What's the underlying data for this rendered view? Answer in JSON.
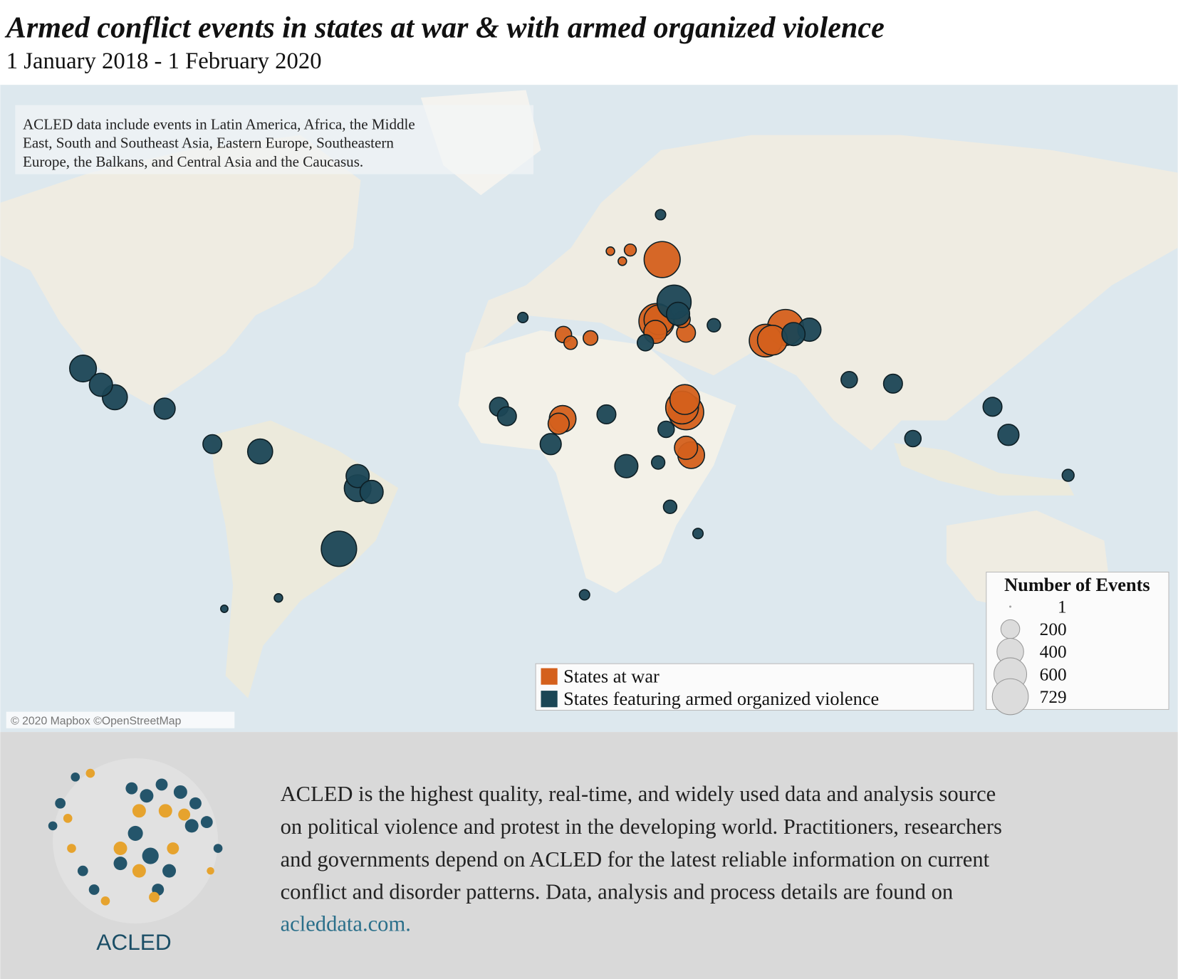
{
  "title": "Armed conflict events in states at war & with armed organized violence",
  "subtitle": "1 January 2018 - 1 February 2020",
  "map_note": [
    "ACLED data include events in Latin America, Africa, the Middle",
    "East, South and Southeast Asia, Eastern Europe, Southeastern",
    "Europe, the Balkans, and Central Asia and the Caucasus."
  ],
  "attribution": "© 2020 Mapbox ©OpenStreetMap",
  "chart_data": {
    "type": "bubble-map",
    "series": [
      {
        "name": "States at war",
        "color": "#d4601c",
        "lon": [
          38,
          36.6,
          37.2,
          36.3,
          69,
          64,
          65.7,
          44,
          43,
          43.7,
          45.3,
          44,
          13,
          12,
          13.2,
          15,
          20,
          44,
          43,
          30,
          25,
          28
        ],
        "lat": [
          48.3,
          35.9,
          36.2,
          33.5,
          34.5,
          31.5,
          31.6,
          13.6,
          14.8,
          16.9,
          2.0,
          4,
          11.8,
          10.5,
          32.9,
          31,
          32.1,
          33.3,
          36.3,
          50,
          49.8,
          48
        ],
        "values": [
          729,
          700,
          500,
          300,
          729,
          600,
          500,
          700,
          600,
          500,
          400,
          300,
          400,
          250,
          150,
          100,
          120,
          200,
          150,
          80,
          40,
          40
        ]
      },
      {
        "name": "States featuring armed organized violence",
        "color": "#1b4655",
        "lon": [
          -107.5,
          -99.5,
          -103,
          -87,
          -63,
          -43.2,
          -38.5,
          -38.5,
          -35,
          41,
          125,
          121,
          75,
          71,
          96,
          29,
          24,
          39,
          10,
          -3,
          -1,
          -75,
          40,
          47,
          18.5,
          42,
          85,
          140,
          37.6,
          -72,
          -58.4,
          33.8,
          51,
          101,
          37,
          3
        ],
        "lat": [
          24.8,
          17.5,
          20.7,
          14.5,
          3,
          -22.9,
          -7,
          -3.7,
          -8,
          40,
          7.5,
          15,
          34,
          33,
          21,
          -1,
          13,
          9,
          5,
          15,
          12.5,
          5,
          -12,
          -19,
          -33.9,
          37.5,
          22,
          -3.5,
          55.8,
          -37,
          -34.6,
          31,
          35,
          6.5,
          0,
          36.7
        ],
        "values": [
          400,
          350,
          300,
          250,
          350,
          700,
          400,
          300,
          300,
          650,
          250,
          200,
          300,
          300,
          200,
          300,
          200,
          150,
          250,
          200,
          200,
          200,
          100,
          60,
          60,
          300,
          150,
          80,
          60,
          30,
          40,
          150,
          100,
          150,
          100,
          60
        ]
      }
    ],
    "size_legend": {
      "title": "Number of Events",
      "values": [
        1,
        200,
        400,
        600,
        729
      ]
    }
  },
  "footer": {
    "logo_text": "ACLED",
    "lines": [
      "ACLED is the highest quality, real-time, and widely used data and analysis source",
      "on political violence and protest in the developing world. Practitioners, researchers",
      "and governments depend on ACLED for the latest reliable information on current",
      "conflict and disorder patterns. Data, analysis and process details are found on"
    ],
    "link": "acleddata.com."
  }
}
